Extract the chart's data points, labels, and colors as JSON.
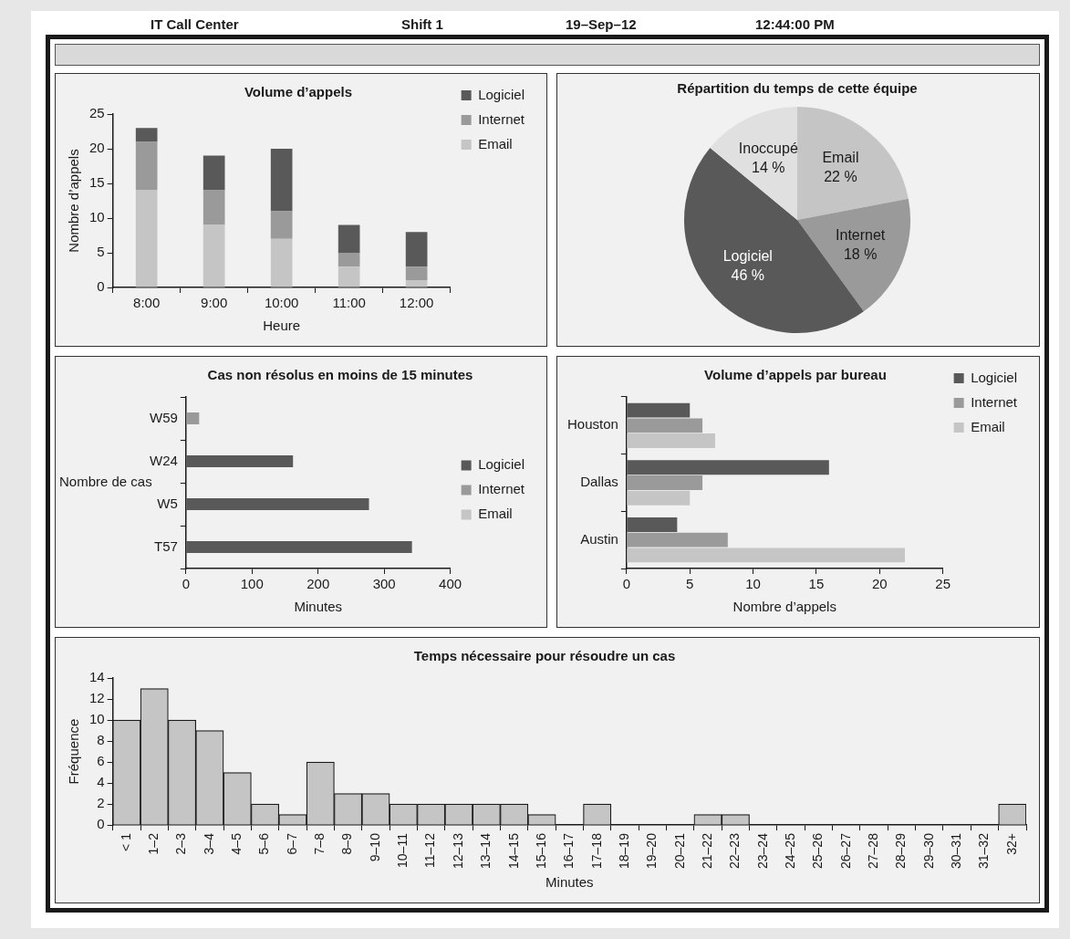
{
  "chart_data": [
    {
      "type": "other",
      "annotations": [
        "IT Call Center",
        "Shift 1",
        "19–Sep–12",
        "12:44:00 PM"
      ]
    },
    {
      "type": "bar",
      "title": "Volume d’appels",
      "xlabel": "Heure",
      "ylabel": "Nombre d’appels",
      "categories": [
        "8:00",
        "9:00",
        "10:00",
        "11:00",
        "12:00"
      ],
      "stacked": true,
      "ylim": [
        0,
        25
      ],
      "yticks": [
        0,
        5,
        10,
        15,
        20,
        25
      ],
      "legend": "top right",
      "series": [
        {
          "name": "Email",
          "color": "#c4c5c4",
          "values": [
            14,
            9,
            7,
            3,
            1
          ]
        },
        {
          "name": "Internet",
          "color": "#999a99",
          "values": [
            7,
            5,
            4,
            2,
            2
          ]
        },
        {
          "name": "Logiciel",
          "color": "#595959",
          "values": [
            2,
            5,
            9,
            4,
            5
          ]
        }
      ]
    },
    {
      "type": "pie",
      "title": "Répartition du temps de cette équipe",
      "categories": [
        "Email",
        "Internet",
        "Logiciel",
        "Inoccupé"
      ],
      "values": [
        22,
        18,
        46,
        14
      ],
      "colors": [
        "#c4c5c4",
        "#999a99",
        "#595959",
        "#dfe0df"
      ],
      "value_labels": [
        "22 %",
        "18 %",
        "46 %",
        "14 %"
      ]
    },
    {
      "type": "bar",
      "title": "Cas non résolus en moins de 15 minutes",
      "xlabel": "Minutes",
      "ylabel": "Nombre de cas",
      "orientation": "horizontal",
      "categories": [
        "W59",
        "W24",
        "W5",
        "T57"
      ],
      "xlim": [
        0,
        400
      ],
      "xticks": [
        0,
        100,
        200,
        300,
        400
      ],
      "legend": "right",
      "series": [
        {
          "name": "Logiciel",
          "color": "#595959",
          "values": [
            null,
            162,
            277,
            342
          ]
        },
        {
          "name": "Internet",
          "color": "#999a99",
          "values": [
            20,
            null,
            null,
            null
          ]
        },
        {
          "name": "Email",
          "color": "#c4c5c4",
          "values": [
            null,
            null,
            null,
            null
          ]
        }
      ]
    },
    {
      "type": "bar",
      "title": "Volume d’appels par bureau",
      "xlabel": "Nombre d’appels",
      "orientation": "horizontal",
      "categories": [
        "Houston",
        "Dallas",
        "Austin"
      ],
      "xlim": [
        0,
        25
      ],
      "xticks": [
        0,
        5,
        10,
        15,
        20,
        25
      ],
      "legend": "top right",
      "series": [
        {
          "name": "Logiciel",
          "color": "#595959",
          "values": [
            5,
            16,
            4
          ]
        },
        {
          "name": "Internet",
          "color": "#999a99",
          "values": [
            6,
            6,
            8
          ]
        },
        {
          "name": "Email",
          "color": "#c4c5c4",
          "values": [
            7,
            5,
            22
          ]
        }
      ]
    },
    {
      "type": "bar",
      "title": "Temps nécessaire pour résoudre un cas",
      "xlabel": "Minutes",
      "ylabel": "Fréquence",
      "categories": [
        "< 1",
        "1–2",
        "2–3",
        "3–4",
        "4–5",
        "5–6",
        "6–7",
        "7–8",
        "8–9",
        "9–10",
        "10–11",
        "11–12",
        "12–13",
        "13–14",
        "14–15",
        "15–16",
        "16–17",
        "17–18",
        "18–19",
        "19–20",
        "20–21",
        "21–22",
        "22–23",
        "23–24",
        "24–25",
        "25–26",
        "26–27",
        "27–28",
        "28–29",
        "29–30",
        "30–31",
        "31–32",
        "32+"
      ],
      "ylim": [
        0,
        14
      ],
      "yticks": [
        0,
        2,
        4,
        6,
        8,
        10,
        12,
        14
      ],
      "series": [
        {
          "color": "#c4c5c4",
          "values": [
            10,
            13,
            10,
            9,
            5,
            2,
            1,
            6,
            3,
            3,
            2,
            2,
            2,
            2,
            2,
            1,
            0,
            2,
            0,
            0,
            0,
            1,
            1,
            0,
            0,
            0,
            0,
            0,
            0,
            0,
            0,
            0,
            2
          ]
        }
      ]
    }
  ]
}
